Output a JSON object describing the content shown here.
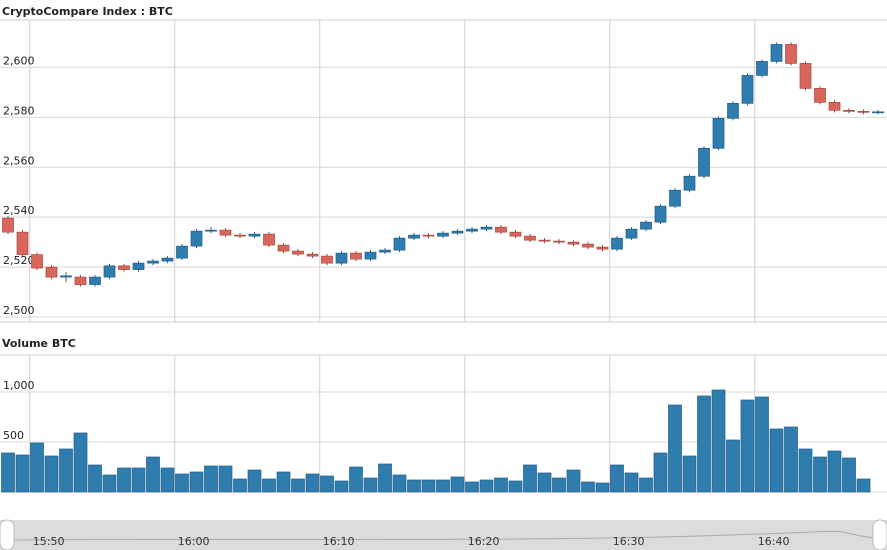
{
  "chart_data": [
    {
      "type": "candlestick",
      "title": "CryptoCompare Index : BTC",
      "x": [
        "15:48",
        "15:49",
        "15:50",
        "15:51",
        "15:52",
        "15:53",
        "15:54",
        "15:55",
        "15:56",
        "15:57",
        "15:58",
        "15:59",
        "16:00",
        "16:01",
        "16:02",
        "16:03",
        "16:04",
        "16:05",
        "16:06",
        "16:07",
        "16:08",
        "16:09",
        "16:10",
        "16:11",
        "16:12",
        "16:13",
        "16:14",
        "16:15",
        "16:16",
        "16:17",
        "16:18",
        "16:19",
        "16:20",
        "16:21",
        "16:22",
        "16:23",
        "16:24",
        "16:25",
        "16:26",
        "16:27",
        "16:28",
        "16:29",
        "16:30",
        "16:31",
        "16:32",
        "16:33",
        "16:34",
        "16:35",
        "16:36",
        "16:37",
        "16:38",
        "16:39",
        "16:40",
        "16:41",
        "16:42",
        "16:43",
        "16:44",
        "16:45",
        "16:46",
        "16:47",
        "16:48"
      ],
      "open": [
        2539.6,
        2534,
        2525,
        2520,
        2516,
        2516,
        2513,
        2516,
        2520.5,
        2519,
        2521.6,
        2522.4,
        2523.6,
        2528.4,
        2534.4,
        2534.8,
        2532.8,
        2532.4,
        2533.2,
        2528.8,
        2526.4,
        2525.2,
        2524.4,
        2521.6,
        2525.6,
        2523.2,
        2526,
        2526.8,
        2531.6,
        2532.8,
        2532.4,
        2533.6,
        2534.4,
        2535.2,
        2536,
        2534,
        2532.4,
        2530.8,
        2530.4,
        2530,
        2529.2,
        2528,
        2527.2,
        2531.6,
        2535.2,
        2538,
        2544.4,
        2550.8,
        2556.4,
        2567.6,
        2579.6,
        2585.6,
        2596.8,
        2602.4,
        2609.2,
        2601.6,
        2591.6,
        2586,
        2582.8,
        2582.4,
        2582
      ],
      "high": [
        2540.4,
        2534.8,
        2525.8,
        2520.8,
        2518,
        2516.8,
        2516.8,
        2521.3,
        2521.3,
        2522.4,
        2523.2,
        2524.4,
        2529.2,
        2535.2,
        2536,
        2535.6,
        2533.6,
        2534,
        2534,
        2529.6,
        2527.2,
        2526,
        2525.2,
        2526.4,
        2526.4,
        2526.8,
        2527.6,
        2532.4,
        2533.6,
        2533.6,
        2534.4,
        2535.2,
        2536,
        2536.8,
        2536.8,
        2534.8,
        2533.2,
        2531.6,
        2531.2,
        2530.8,
        2530,
        2528.8,
        2532.4,
        2536,
        2538.8,
        2545.2,
        2551.6,
        2557.2,
        2568.4,
        2580.4,
        2586.4,
        2597.6,
        2603.2,
        2610,
        2610,
        2602.4,
        2592.4,
        2586.8,
        2583.6,
        2583.2,
        2583
      ],
      "low": [
        2533.2,
        2524.2,
        2518.8,
        2515.2,
        2514,
        2512.2,
        2512.2,
        2515.2,
        2518.2,
        2518.2,
        2520.8,
        2521.6,
        2522.8,
        2527.6,
        2533.6,
        2532,
        2531.6,
        2531.6,
        2528,
        2525.6,
        2524.4,
        2523.6,
        2520.8,
        2520.8,
        2522.4,
        2522.4,
        2525.2,
        2526,
        2530.8,
        2531.6,
        2531.6,
        2532.8,
        2533.6,
        2534.4,
        2533.2,
        2531.6,
        2530,
        2529.6,
        2529.2,
        2528.4,
        2527.2,
        2526.4,
        2526.4,
        2530.8,
        2534.4,
        2537.2,
        2543.6,
        2550,
        2555.6,
        2566.8,
        2578.8,
        2584.8,
        2596,
        2601.6,
        2600.8,
        2590.8,
        2585.2,
        2582,
        2581.6,
        2581.2,
        2581.2
      ],
      "close": [
        2534,
        2525,
        2519.6,
        2516,
        2516.5,
        2513,
        2516,
        2520.5,
        2519,
        2521.6,
        2522.4,
        2523.6,
        2528.4,
        2534.4,
        2534.8,
        2532.8,
        2532.4,
        2533.2,
        2528.8,
        2526.4,
        2525.2,
        2524.4,
        2521.6,
        2525.6,
        2523.2,
        2526,
        2526.8,
        2531.6,
        2532.8,
        2532.4,
        2533.6,
        2534.4,
        2535.2,
        2536,
        2534,
        2532.4,
        2530.8,
        2530.4,
        2530,
        2529.2,
        2528,
        2527.2,
        2531.6,
        2535.2,
        2538,
        2544.4,
        2550.8,
        2556.4,
        2567.6,
        2579.6,
        2585.6,
        2596.8,
        2602.4,
        2609.2,
        2601.6,
        2591.6,
        2586,
        2582.8,
        2582.4,
        2582,
        2582.2
      ],
      "up_color": "#2f7cae",
      "down_color": "#d9665a",
      "ylim": [
        2498,
        2619
      ],
      "yticks": [
        {
          "value": 2500,
          "label": "2,500"
        },
        {
          "value": 2520,
          "label": "2,520"
        },
        {
          "value": 2540,
          "label": "2,540"
        },
        {
          "value": 2560,
          "label": "2,560"
        },
        {
          "value": 2580,
          "label": "2,580"
        },
        {
          "value": 2600,
          "label": "2,600"
        }
      ],
      "xticks": [
        "15:50",
        "16:00",
        "16:10",
        "16:20",
        "16:30",
        "16:40"
      ],
      "grid": true
    },
    {
      "type": "bar",
      "title": "Volume BTC",
      "values": [
        390,
        370,
        490,
        360,
        430,
        590,
        270,
        170,
        240,
        240,
        350,
        240,
        180,
        200,
        260,
        260,
        130,
        220,
        130,
        200,
        130,
        180,
        160,
        110,
        250,
        140,
        280,
        170,
        120,
        120,
        120,
        150,
        100,
        120,
        140,
        110,
        270,
        190,
        140,
        220,
        100,
        90,
        270,
        190,
        140,
        390,
        870,
        360,
        960,
        1020,
        520,
        920,
        950,
        630,
        650,
        430,
        350,
        410,
        340,
        130,
        null
      ],
      "color": "#2f7cae",
      "ylim": [
        0,
        1370
      ],
      "yticks": [
        0,
        500,
        {
          "value": 1000,
          "label": "1,000"
        }
      ],
      "grid": true
    }
  ]
}
